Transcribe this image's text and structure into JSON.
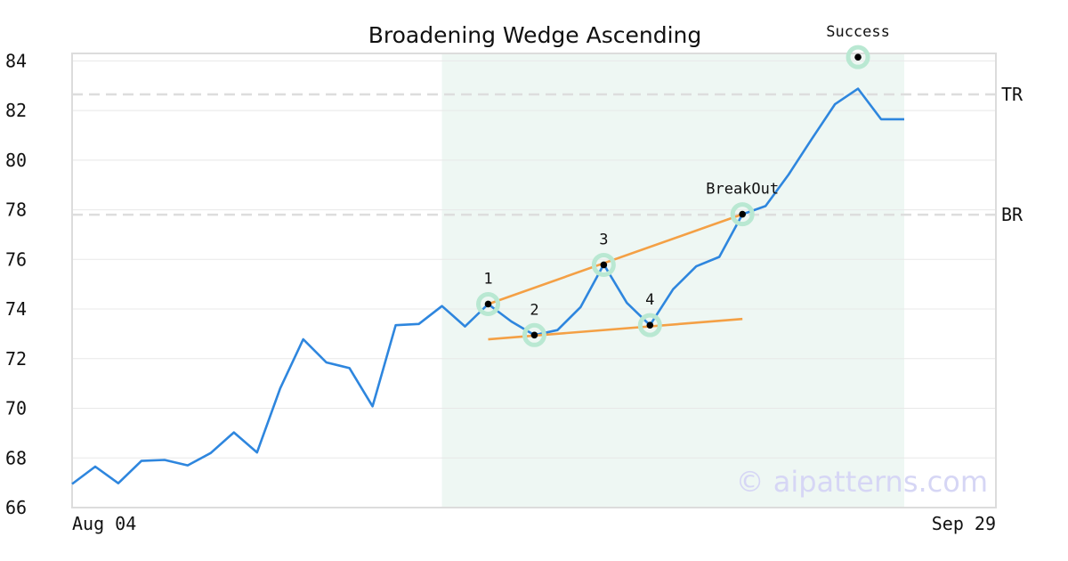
{
  "chart_data": {
    "type": "line",
    "title": "Broadening Wedge Ascending",
    "xlabel": "",
    "ylabel": "",
    "x_tick_labels": [
      "Aug 04",
      "Sep 29"
    ],
    "y_ticks": [
      66,
      68,
      70,
      72,
      74,
      76,
      78,
      80,
      82,
      84
    ],
    "ylim": [
      66,
      84.3
    ],
    "grid": true,
    "series": [
      {
        "color": "#2e86de",
        "values": [
          66.95,
          67.65,
          66.98,
          67.88,
          67.92,
          67.7,
          68.2,
          69.03,
          68.22,
          70.8,
          72.78,
          71.85,
          71.62,
          70.08,
          73.35,
          73.4,
          74.12,
          73.3,
          74.2,
          73.5,
          72.95,
          73.15,
          74.08,
          75.8,
          74.25,
          73.35,
          74.8,
          75.72,
          76.1,
          77.82,
          78.15,
          79.42,
          80.85,
          82.25,
          82.88,
          81.65,
          81.65
        ]
      }
    ],
    "shaded_region": {
      "x_start": 16,
      "x_end": 36,
      "color": "#eef7f3"
    },
    "reference_lines": [
      {
        "label": "TR",
        "value": 82.65
      },
      {
        "label": "BR",
        "value": 77.8
      }
    ],
    "pattern_points": [
      {
        "label": "1",
        "x": 18,
        "y": 74.2
      },
      {
        "label": "2",
        "x": 20,
        "y": 72.95
      },
      {
        "label": "3",
        "x": 23,
        "y": 75.78
      },
      {
        "label": "4",
        "x": 25,
        "y": 73.35
      },
      {
        "label": "BreakOut",
        "x": 29,
        "y": 77.82
      },
      {
        "label": "Success",
        "x": 34,
        "y": 84.15
      }
    ],
    "trendlines": [
      {
        "color": "#f4a045",
        "x1": 18,
        "y1": 74.2,
        "x2": 29,
        "y2": 77.82
      },
      {
        "color": "#f4a045",
        "x1": 18,
        "y1": 72.78,
        "x2": 29,
        "y2": 73.6
      }
    ],
    "watermark": "© aipatterns.com"
  }
}
